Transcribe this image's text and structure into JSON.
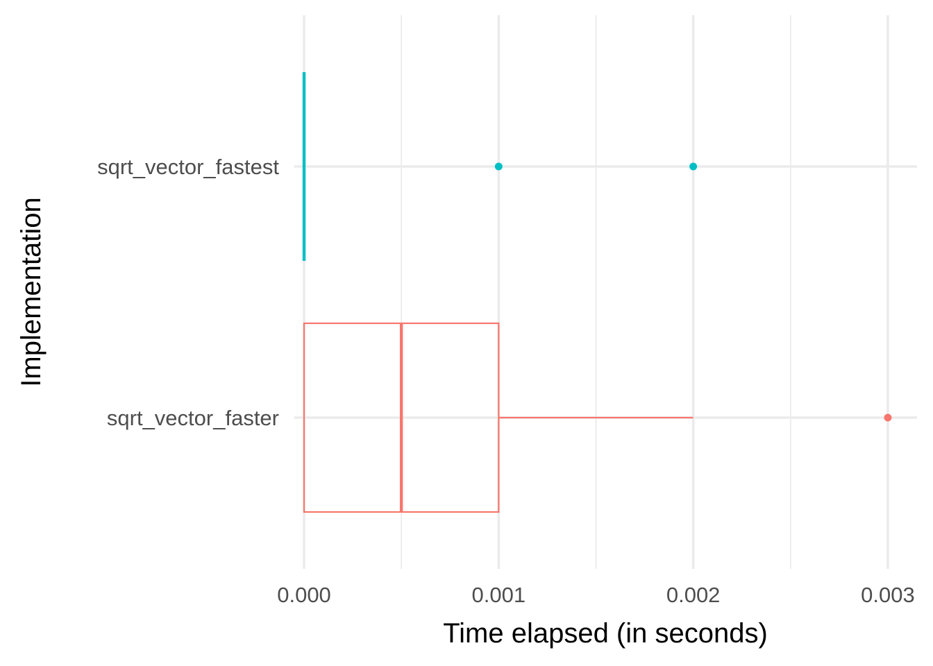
{
  "chart_data": {
    "type": "boxplot",
    "orientation": "horizontal",
    "title": "",
    "xlabel": "Time elapsed (in seconds)",
    "ylabel": "Implementation",
    "xlim": [
      -5e-05,
      0.00315
    ],
    "x_ticks": [
      0.0,
      0.001,
      0.002,
      0.003
    ],
    "x_tick_labels": [
      "0.000",
      "0.001",
      "0.002",
      "0.003"
    ],
    "x_minor_ticks": [
      0.0005,
      0.0015,
      0.0025
    ],
    "categories": [
      "sqrt_vector_faster",
      "sqrt_vector_fastest"
    ],
    "grid": true,
    "legend": "none",
    "series": [
      {
        "category": "sqrt_vector_faster",
        "color": "#F8766D",
        "q1": 0.0,
        "median": 0.0005,
        "q3": 0.001,
        "whisker_low": 0.0,
        "whisker_high": 0.002,
        "outliers": [
          0.003
        ]
      },
      {
        "category": "sqrt_vector_fastest",
        "color": "#00BFC4",
        "q1": 0.0,
        "median": 0.0,
        "q3": 0.0,
        "whisker_low": 0.0,
        "whisker_high": 0.0,
        "outliers": [
          0.001,
          0.002
        ]
      }
    ]
  }
}
